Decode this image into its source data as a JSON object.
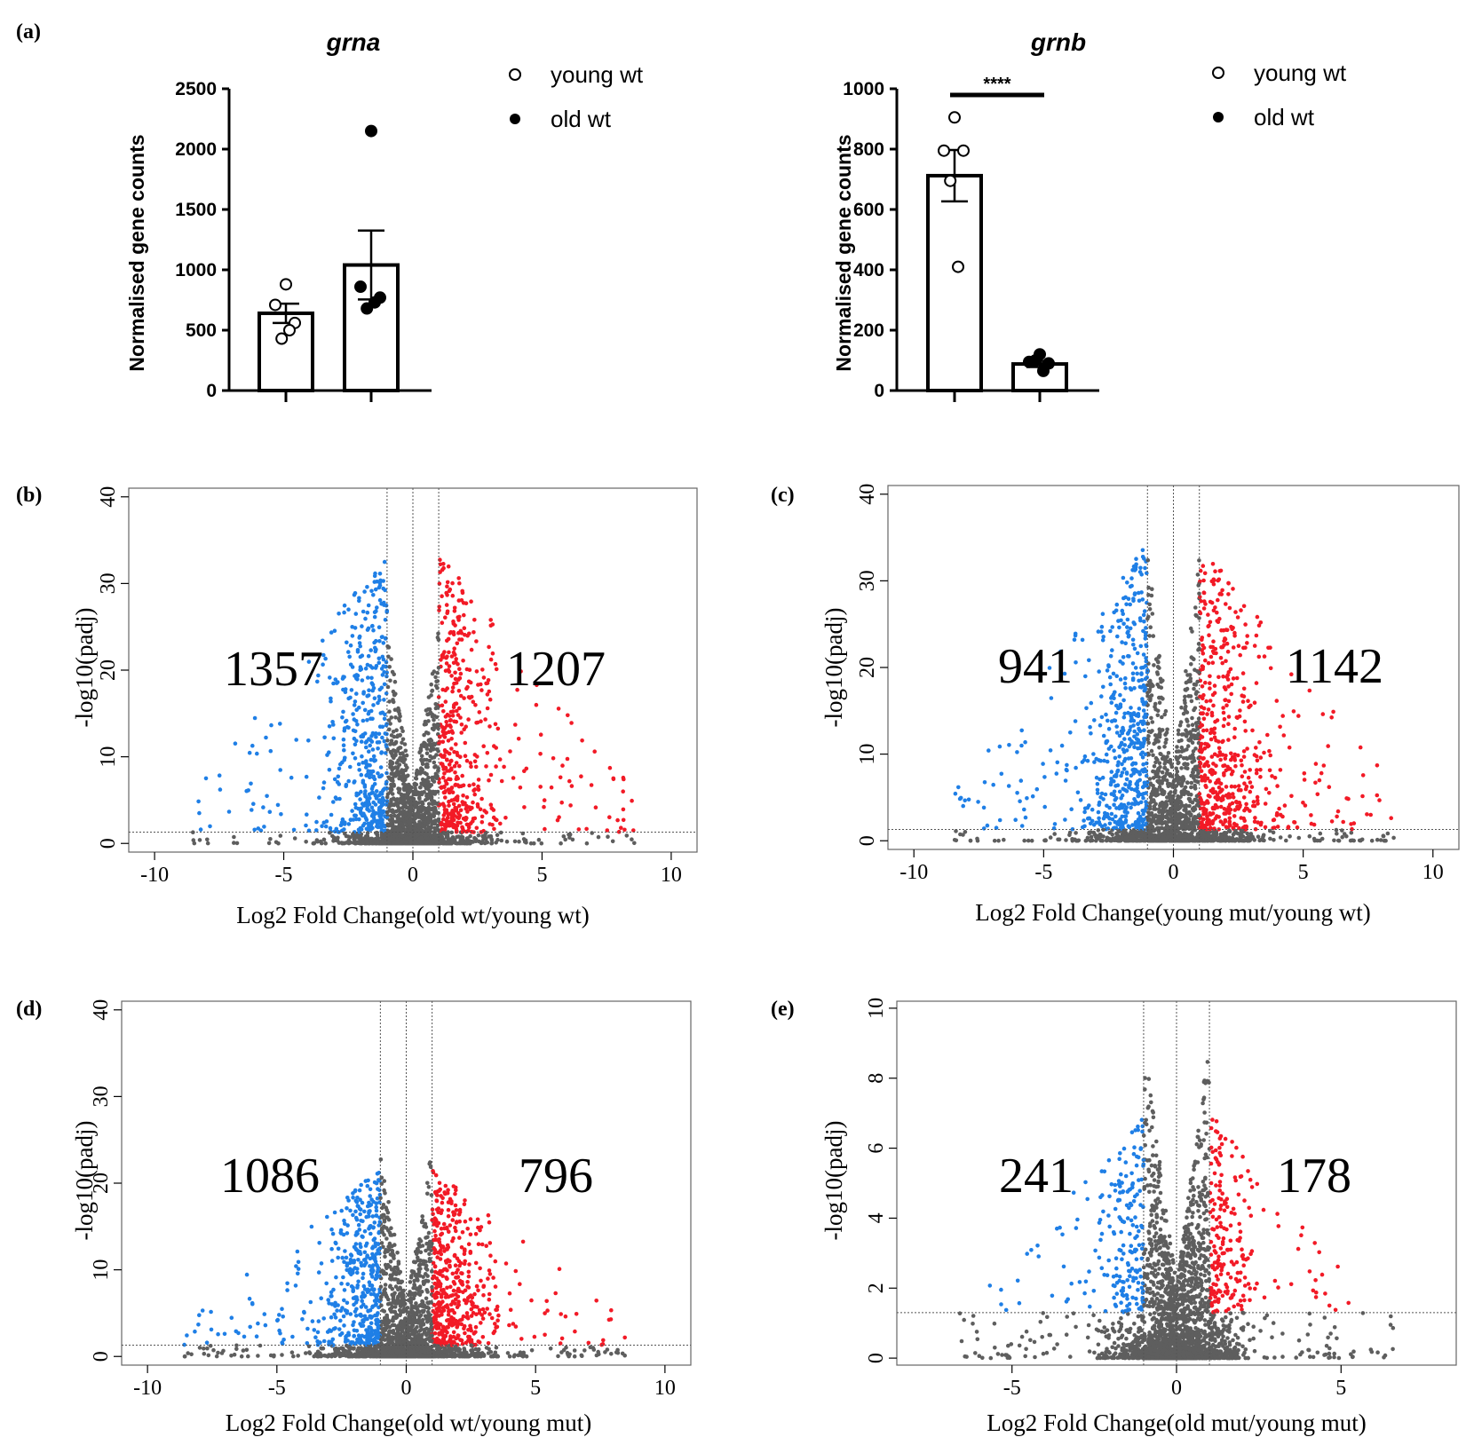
{
  "chart_data": [
    {
      "type": "bar",
      "panel": "(a)",
      "title": "grna",
      "ylabel": "Normalised gene counts",
      "ylim": [
        0,
        2500
      ],
      "yticks": [
        0,
        500,
        1000,
        1500,
        2000,
        2500
      ],
      "categories": [
        "young wt",
        "old wt"
      ],
      "means": [
        640,
        1040
      ],
      "sem": [
        80,
        285
      ],
      "points": [
        [
          880,
          710,
          560,
          430,
          500
        ],
        [
          2150,
          860,
          770,
          680,
          730
        ]
      ],
      "legend": [
        "young wt",
        "old wt"
      ]
    },
    {
      "type": "bar",
      "title": "grnb",
      "ylabel": "Normalised gene counts",
      "ylim": [
        0,
        1000
      ],
      "yticks": [
        0,
        200,
        400,
        600,
        800,
        1000
      ],
      "categories": [
        "young wt",
        "old wt"
      ],
      "means": [
        712,
        88
      ],
      "sem": [
        85,
        10
      ],
      "points": [
        [
          905,
          795,
          795,
          695,
          410
        ],
        [
          120,
          95,
          90,
          100,
          65
        ]
      ],
      "significance": "****",
      "legend": [
        "young wt",
        "old wt"
      ]
    },
    {
      "type": "scatter",
      "panel": "(b)",
      "xlabel": "Log2 Fold Change(old wt/young wt)",
      "ylabel": "-log10(padj)",
      "xlim": [
        -11,
        11
      ],
      "ylim": [
        -1,
        41
      ],
      "xticks": [
        -10,
        -5,
        0,
        5,
        10
      ],
      "yticks": [
        0,
        10,
        20,
        30,
        40
      ],
      "down_count": "1357",
      "up_count": "1207",
      "fc_threshold": 1,
      "padj_line": 1.3,
      "xspread": 3,
      "hmax": 37,
      "grayh": 19
    },
    {
      "type": "scatter",
      "panel": "(c)",
      "xlabel": "Log2 Fold Change(young mut/young wt)",
      "ylabel": "-log10(padj)",
      "xlim": [
        -11,
        11
      ],
      "ylim": [
        -1,
        41
      ],
      "xticks": [
        -10,
        -5,
        0,
        5,
        10
      ],
      "yticks": [
        0,
        10,
        20,
        30,
        40
      ],
      "down_count": "941",
      "up_count": "1142",
      "fc_threshold": 1,
      "padj_line": 1.3,
      "xspread": 3.5,
      "hmax": 38,
      "grayh": 26
    },
    {
      "type": "scatter",
      "panel": "(d)",
      "xlabel": "Log2 Fold Change(old wt/young mut)",
      "ylabel": "-log10(padj)",
      "xlim": [
        -11,
        11
      ],
      "ylim": [
        -1,
        41
      ],
      "xticks": [
        -10,
        -5,
        0,
        5,
        10
      ],
      "yticks": [
        0,
        10,
        20,
        30,
        40
      ],
      "down_count": "1086",
      "up_count": "796",
      "fc_threshold": 1,
      "padj_line": 1.3,
      "xspread": 3,
      "hmax": 24,
      "grayh": 19
    },
    {
      "type": "scatter",
      "panel": "(e)",
      "xlabel": "Log2 Fold Change(old mut/young mut)",
      "ylabel": "-log10(padj)",
      "xlim": [
        -8.5,
        8.5
      ],
      "ylim": [
        -0.2,
        10.2
      ],
      "xticks": [
        -5,
        0,
        5
      ],
      "yticks": [
        0,
        2,
        4,
        6,
        8,
        10
      ],
      "down_count": "241",
      "up_count": "178",
      "fc_threshold": 1,
      "padj_line": 1.3,
      "xspread": 2,
      "hmax": 8,
      "grayh": 7
    }
  ],
  "colors": {
    "up": "#f21a26",
    "down": "#1f7fe6",
    "ns": "#5e5e5e",
    "axis": "#000000",
    "guide": "#555555"
  }
}
